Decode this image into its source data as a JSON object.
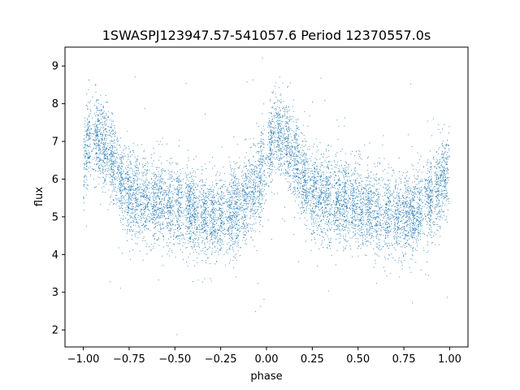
{
  "chart_data": {
    "type": "scatter",
    "title": "1SWASPJ123947.57-541057.6 Period 12370557.0s",
    "xlabel": "phase",
    "ylabel": "flux",
    "xlim": [
      -1.1,
      1.1
    ],
    "ylim": [
      1.55,
      9.5
    ],
    "xticks": [
      -1.0,
      -0.75,
      -0.5,
      -0.25,
      0.0,
      0.25,
      0.5,
      0.75,
      1.0
    ],
    "xtick_labels": [
      "−1.00",
      "−0.75",
      "−0.50",
      "−0.25",
      "0.00",
      "0.25",
      "0.50",
      "0.75",
      "1.00"
    ],
    "yticks": [
      2,
      3,
      4,
      5,
      6,
      7,
      8,
      9
    ],
    "ytick_labels": [
      "2",
      "3",
      "4",
      "5",
      "6",
      "7",
      "8",
      "9"
    ],
    "grid": false,
    "point_color": "#1f77b4",
    "profile": {
      "phase": [
        0.0,
        0.02,
        0.05,
        0.08,
        0.12,
        0.16,
        0.2,
        0.25,
        0.3,
        0.35,
        0.4,
        0.45,
        0.5,
        0.55,
        0.6,
        0.65,
        0.7,
        0.75,
        0.8,
        0.85,
        0.9,
        0.95,
        1.0
      ],
      "flux": [
        6.4,
        6.9,
        7.3,
        7.1,
        6.8,
        6.5,
        6.0,
        5.6,
        5.5,
        5.45,
        5.4,
        5.35,
        5.3,
        5.25,
        5.15,
        5.05,
        5.0,
        5.0,
        5.05,
        5.25,
        5.55,
        5.9,
        6.4
      ]
    },
    "scatter_sigma": 0.55,
    "n_points": 9000
  }
}
